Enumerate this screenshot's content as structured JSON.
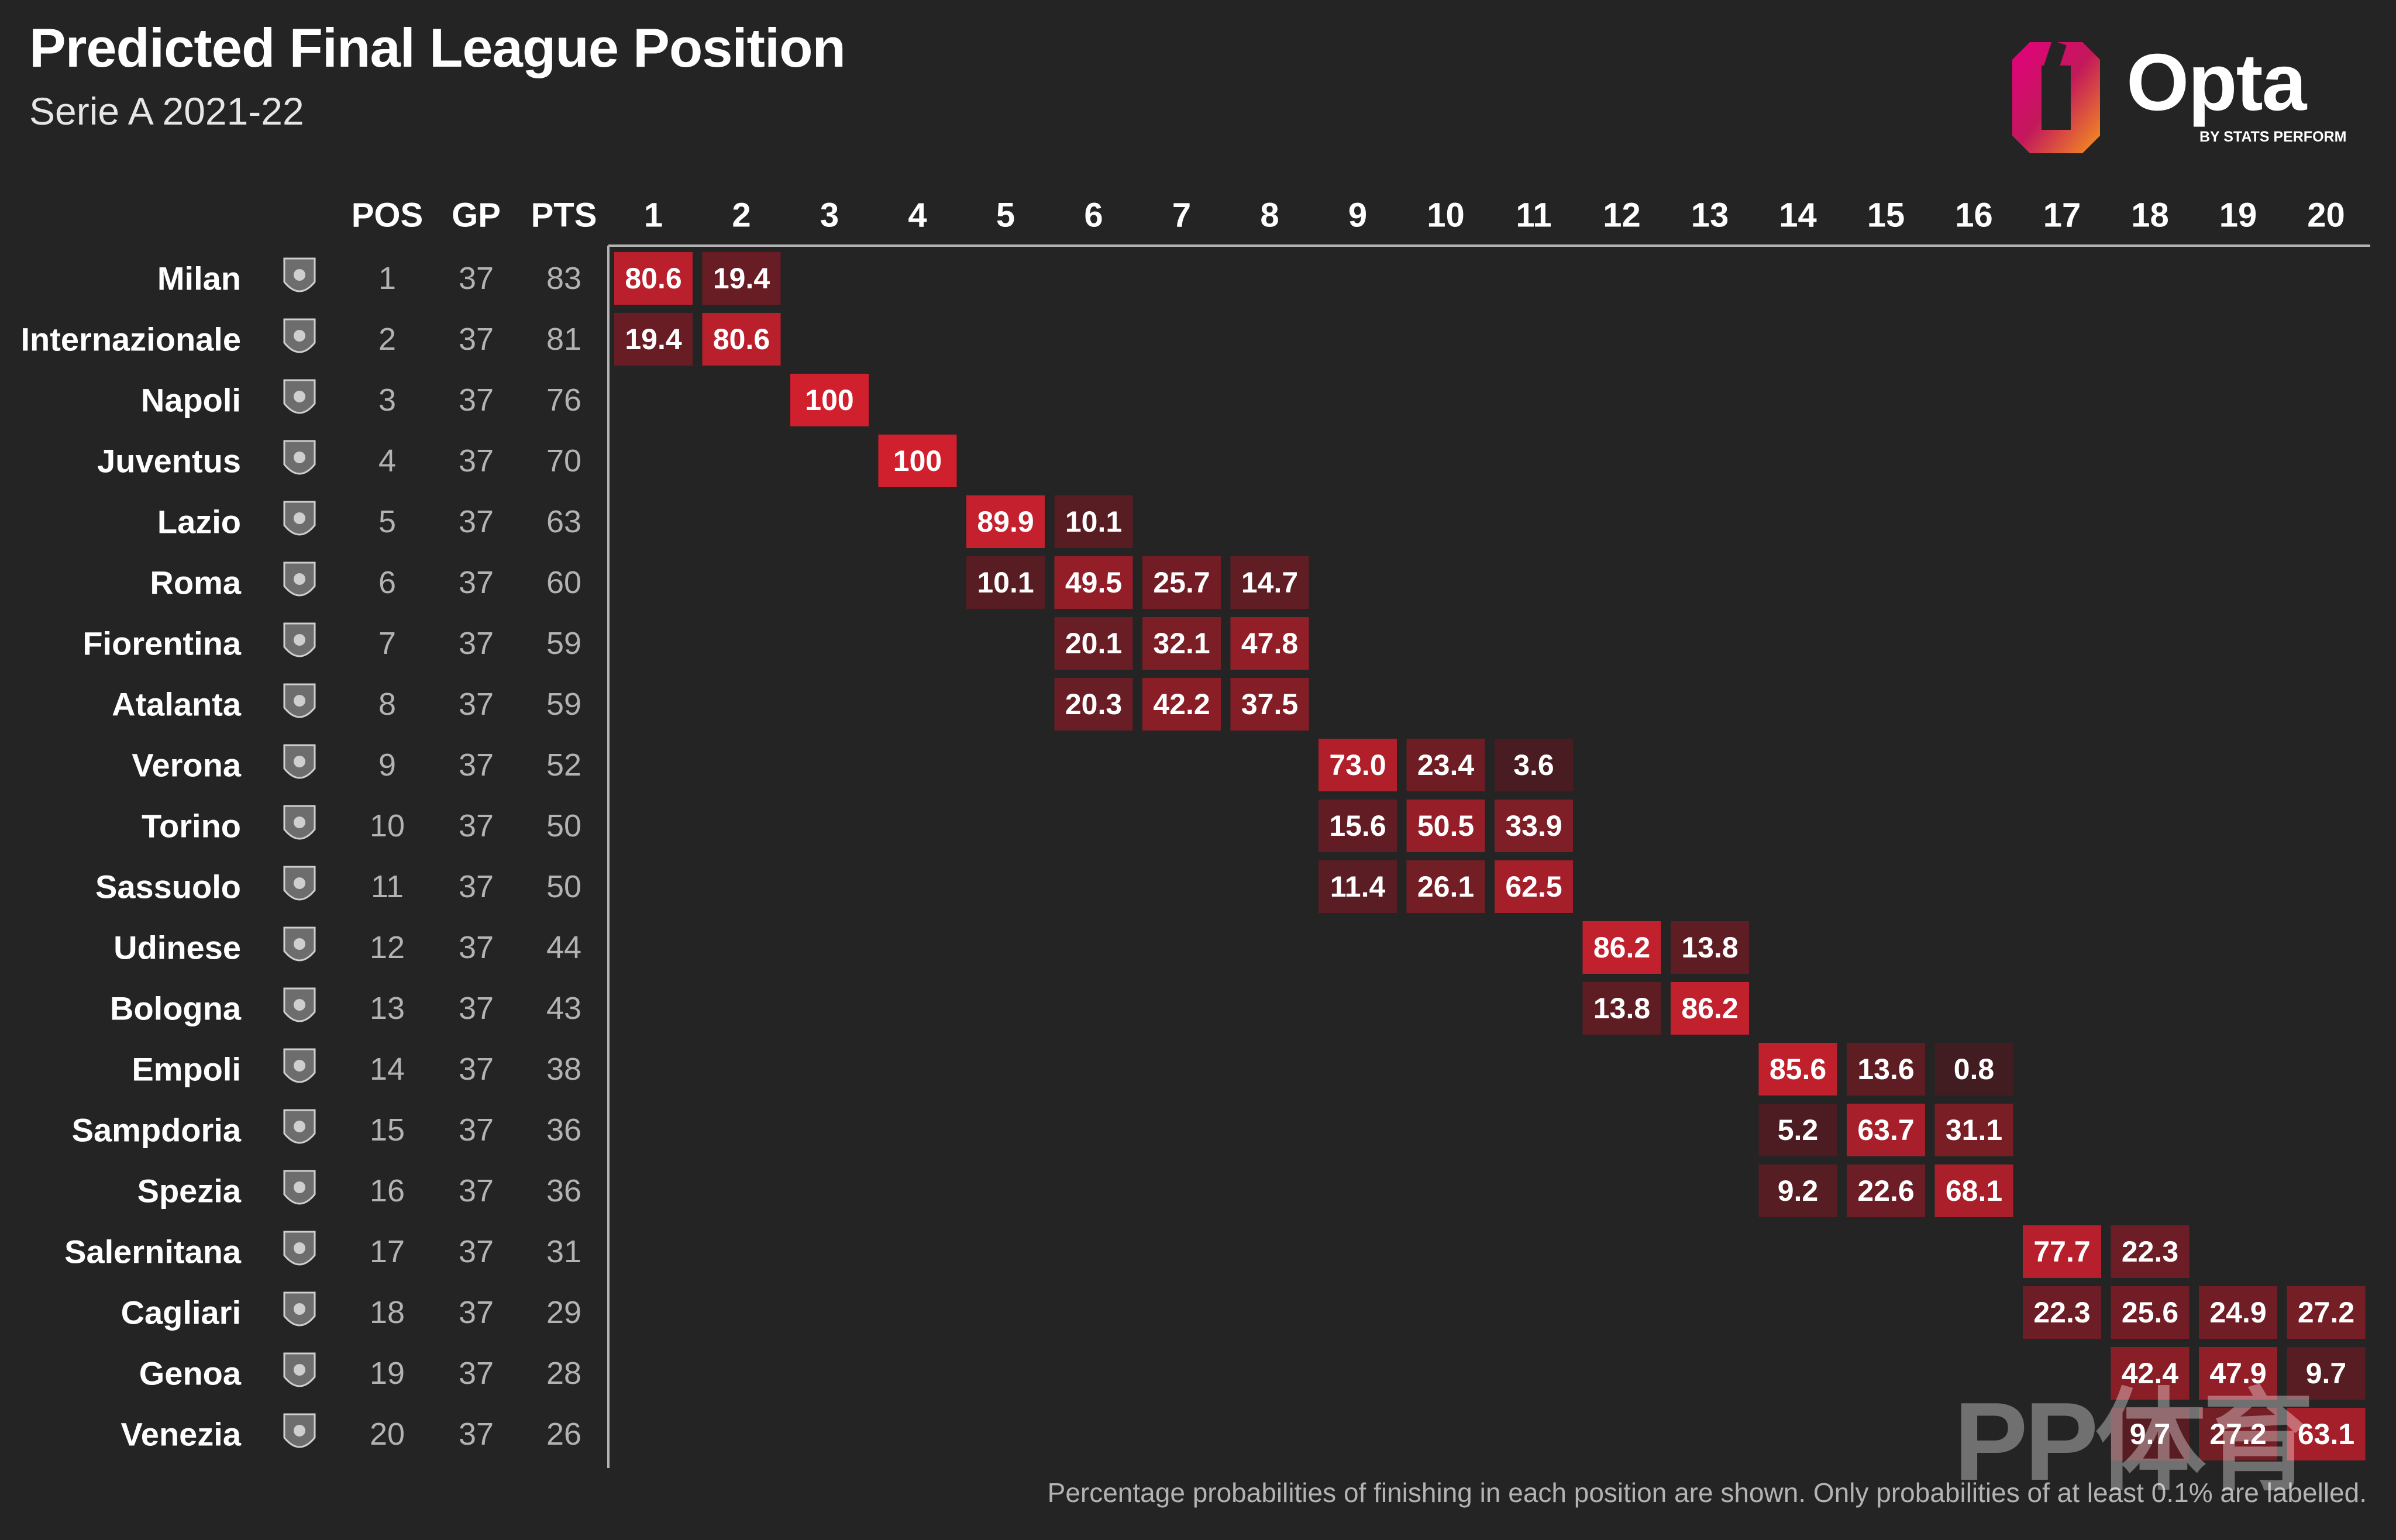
{
  "header": {
    "title": "Predicted Final League Position",
    "subtitle": "Serie A 2021-22"
  },
  "logo": {
    "word": "Opta",
    "tag": "BY STATS PERFORM",
    "colors": [
      "#e6007e",
      "#f7941d"
    ]
  },
  "footnote": "Percentage probabilities of finishing in each position are shown. Only probabilities of at least 0.1% are labelled.",
  "watermark": "PP体育",
  "colors": {
    "background": "#242424",
    "cell_high": "#d0202e",
    "cell_low": "#3d1c20",
    "text_main": "#ffffff",
    "text_muted": "#b3b3b3",
    "axis_line": "#b3b3b3"
  },
  "chart_data": {
    "type": "heatmap",
    "title": "Predicted Final League Position",
    "subtitle": "Serie A 2021-22",
    "stat_headers": [
      "POS",
      "GP",
      "PTS"
    ],
    "position_headers": [
      "1",
      "2",
      "3",
      "4",
      "5",
      "6",
      "7",
      "8",
      "9",
      "10",
      "11",
      "12",
      "13",
      "14",
      "15",
      "16",
      "17",
      "18",
      "19",
      "20"
    ],
    "teams": [
      {
        "name": "Milan",
        "icon": "milan-crest-icon",
        "pos": "1",
        "gp": "37",
        "pts": "83",
        "probs": [
          {
            "p": 1,
            "v": "80.6"
          },
          {
            "p": 2,
            "v": "19.4"
          }
        ]
      },
      {
        "name": "Internazionale",
        "icon": "inter-crest-icon",
        "pos": "2",
        "gp": "37",
        "pts": "81",
        "probs": [
          {
            "p": 1,
            "v": "19.4"
          },
          {
            "p": 2,
            "v": "80.6"
          }
        ]
      },
      {
        "name": "Napoli",
        "icon": "napoli-crest-icon",
        "pos": "3",
        "gp": "37",
        "pts": "76",
        "probs": [
          {
            "p": 3,
            "v": "100"
          }
        ]
      },
      {
        "name": "Juventus",
        "icon": "juventus-crest-icon",
        "pos": "4",
        "gp": "37",
        "pts": "70",
        "probs": [
          {
            "p": 4,
            "v": "100"
          }
        ]
      },
      {
        "name": "Lazio",
        "icon": "lazio-crest-icon",
        "pos": "5",
        "gp": "37",
        "pts": "63",
        "probs": [
          {
            "p": 5,
            "v": "89.9"
          },
          {
            "p": 6,
            "v": "10.1"
          }
        ]
      },
      {
        "name": "Roma",
        "icon": "roma-crest-icon",
        "pos": "6",
        "gp": "37",
        "pts": "60",
        "probs": [
          {
            "p": 5,
            "v": "10.1"
          },
          {
            "p": 6,
            "v": "49.5"
          },
          {
            "p": 7,
            "v": "25.7"
          },
          {
            "p": 8,
            "v": "14.7"
          }
        ]
      },
      {
        "name": "Fiorentina",
        "icon": "fiorentina-crest-icon",
        "pos": "7",
        "gp": "37",
        "pts": "59",
        "probs": [
          {
            "p": 6,
            "v": "20.1"
          },
          {
            "p": 7,
            "v": "32.1"
          },
          {
            "p": 8,
            "v": "47.8"
          }
        ]
      },
      {
        "name": "Atalanta",
        "icon": "atalanta-crest-icon",
        "pos": "8",
        "gp": "37",
        "pts": "59",
        "probs": [
          {
            "p": 6,
            "v": "20.3"
          },
          {
            "p": 7,
            "v": "42.2"
          },
          {
            "p": 8,
            "v": "37.5"
          }
        ]
      },
      {
        "name": "Verona",
        "icon": "verona-crest-icon",
        "pos": "9",
        "gp": "37",
        "pts": "52",
        "probs": [
          {
            "p": 9,
            "v": "73.0"
          },
          {
            "p": 10,
            "v": "23.4"
          },
          {
            "p": 11,
            "v": "3.6"
          }
        ]
      },
      {
        "name": "Torino",
        "icon": "torino-crest-icon",
        "pos": "10",
        "gp": "37",
        "pts": "50",
        "probs": [
          {
            "p": 9,
            "v": "15.6"
          },
          {
            "p": 10,
            "v": "50.5"
          },
          {
            "p": 11,
            "v": "33.9"
          }
        ]
      },
      {
        "name": "Sassuolo",
        "icon": "sassuolo-crest-icon",
        "pos": "11",
        "gp": "37",
        "pts": "50",
        "probs": [
          {
            "p": 9,
            "v": "11.4"
          },
          {
            "p": 10,
            "v": "26.1"
          },
          {
            "p": 11,
            "v": "62.5"
          }
        ]
      },
      {
        "name": "Udinese",
        "icon": "udinese-crest-icon",
        "pos": "12",
        "gp": "37",
        "pts": "44",
        "probs": [
          {
            "p": 12,
            "v": "86.2"
          },
          {
            "p": 13,
            "v": "13.8"
          }
        ]
      },
      {
        "name": "Bologna",
        "icon": "bologna-crest-icon",
        "pos": "13",
        "gp": "37",
        "pts": "43",
        "probs": [
          {
            "p": 12,
            "v": "13.8"
          },
          {
            "p": 13,
            "v": "86.2"
          }
        ]
      },
      {
        "name": "Empoli",
        "icon": "empoli-crest-icon",
        "pos": "14",
        "gp": "37",
        "pts": "38",
        "probs": [
          {
            "p": 14,
            "v": "85.6"
          },
          {
            "p": 15,
            "v": "13.6"
          },
          {
            "p": 16,
            "v": "0.8"
          }
        ]
      },
      {
        "name": "Sampdoria",
        "icon": "sampdoria-crest-icon",
        "pos": "15",
        "gp": "37",
        "pts": "36",
        "probs": [
          {
            "p": 14,
            "v": "5.2"
          },
          {
            "p": 15,
            "v": "63.7"
          },
          {
            "p": 16,
            "v": "31.1"
          }
        ]
      },
      {
        "name": "Spezia",
        "icon": "spezia-crest-icon",
        "pos": "16",
        "gp": "37",
        "pts": "36",
        "probs": [
          {
            "p": 14,
            "v": "9.2"
          },
          {
            "p": 15,
            "v": "22.6"
          },
          {
            "p": 16,
            "v": "68.1"
          }
        ]
      },
      {
        "name": "Salernitana",
        "icon": "salernitana-crest-icon",
        "pos": "17",
        "gp": "37",
        "pts": "31",
        "probs": [
          {
            "p": 17,
            "v": "77.7"
          },
          {
            "p": 18,
            "v": "22.3"
          }
        ]
      },
      {
        "name": "Cagliari",
        "icon": "cagliari-crest-icon",
        "pos": "18",
        "gp": "37",
        "pts": "29",
        "probs": [
          {
            "p": 17,
            "v": "22.3"
          },
          {
            "p": 18,
            "v": "25.6"
          },
          {
            "p": 19,
            "v": "24.9"
          },
          {
            "p": 20,
            "v": "27.2"
          }
        ]
      },
      {
        "name": "Genoa",
        "icon": "genoa-crest-icon",
        "pos": "19",
        "gp": "37",
        "pts": "28",
        "probs": [
          {
            "p": 18,
            "v": "42.4"
          },
          {
            "p": 19,
            "v": "47.9"
          },
          {
            "p": 20,
            "v": "9.7"
          }
        ]
      },
      {
        "name": "Venezia",
        "icon": "venezia-crest-icon",
        "pos": "20",
        "gp": "37",
        "pts": "26",
        "probs": [
          {
            "p": 18,
            "v": "9.7"
          },
          {
            "p": 19,
            "v": "27.2"
          },
          {
            "p": 20,
            "v": "63.1"
          }
        ]
      }
    ]
  }
}
